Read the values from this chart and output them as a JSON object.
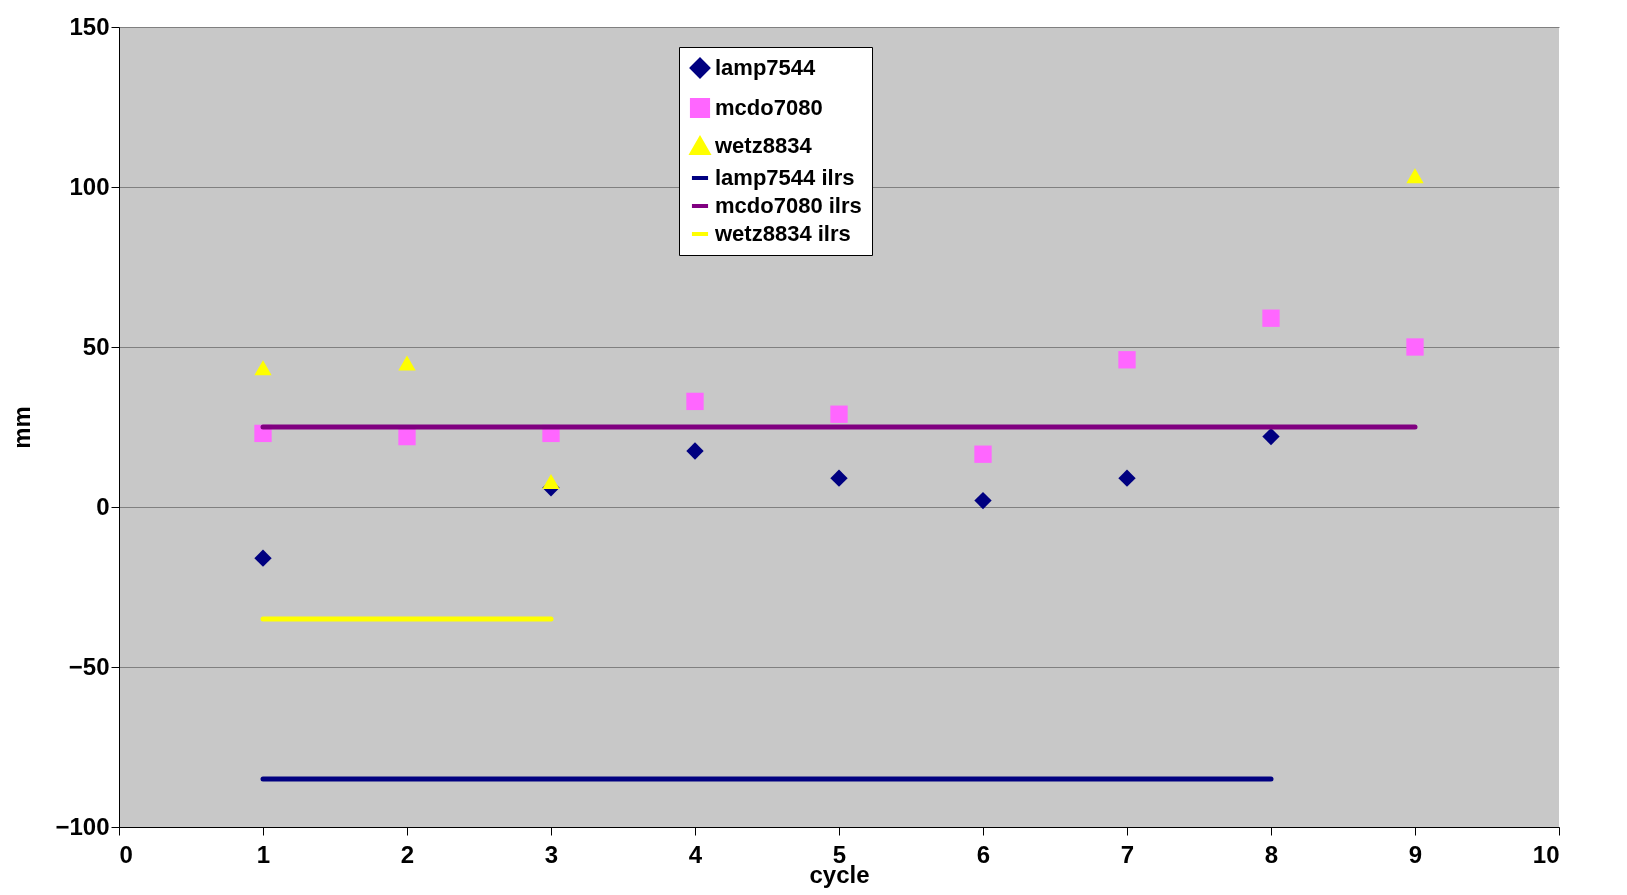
{
  "chart_data": {
    "type": "scatter",
    "xlabel": "cycle",
    "ylabel": "mm",
    "xlim": [
      0,
      10
    ],
    "xticks": [
      0,
      1,
      2,
      3,
      4,
      5,
      6,
      7,
      8,
      9,
      10
    ],
    "ylim": [
      -100,
      150
    ],
    "yticks": [
      -100,
      -50,
      0,
      50,
      100,
      150
    ],
    "grid": "y",
    "legend": "top",
    "series": [
      {
        "name": "lamp7544",
        "marker": "diamond",
        "color": "#000080",
        "x": [
          1,
          3,
          4,
          5,
          6,
          7,
          8
        ],
        "values": [
          -16,
          6,
          17.5,
          9,
          2,
          9,
          22
        ]
      },
      {
        "name": "mcdo7080",
        "marker": "square",
        "color": "#ff66ff",
        "x": [
          1,
          2,
          3,
          4,
          5,
          6,
          7,
          8,
          9
        ],
        "values": [
          23,
          22,
          23,
          33,
          29,
          16.5,
          46,
          59,
          50
        ]
      },
      {
        "name": "wetz8834",
        "marker": "triangle",
        "color": "#ffff00",
        "x": [
          1,
          2,
          3,
          9
        ],
        "values": [
          43.5,
          45,
          8,
          103.5
        ]
      },
      {
        "name": "lamp7544 ilrs",
        "type": "line",
        "color": "#000080",
        "x": [
          1,
          8
        ],
        "values": [
          -85,
          -85
        ]
      },
      {
        "name": "mcdo7080 ilrs",
        "type": "line",
        "color": "#800080",
        "x": [
          1,
          9
        ],
        "values": [
          25,
          25
        ]
      },
      {
        "name": "wetz8834 ilrs",
        "type": "line",
        "color": "#ffff00",
        "x": [
          1,
          3
        ],
        "values": [
          -35,
          -35
        ]
      }
    ]
  }
}
